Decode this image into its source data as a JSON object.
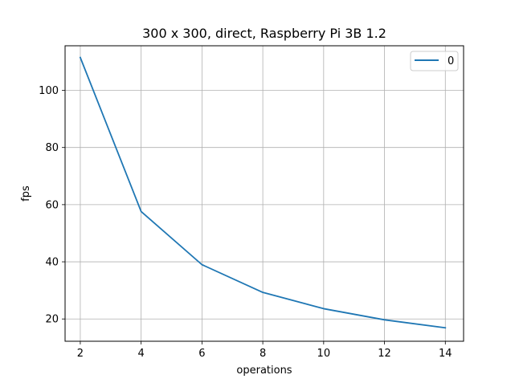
{
  "chart_data": {
    "type": "line",
    "title": "300 x 300, direct,  Raspberry Pi 3B 1.2",
    "xlabel": "operations",
    "ylabel": "fps",
    "xlim": [
      1.5,
      14.6
    ],
    "ylim": [
      12.2,
      115.6
    ],
    "xticks": [
      2,
      4,
      6,
      8,
      10,
      12,
      14
    ],
    "yticks": [
      20,
      40,
      60,
      80,
      100
    ],
    "grid": true,
    "legend_position": "top-right",
    "series": [
      {
        "name": "0",
        "color": "#1f77b4",
        "x": [
          2,
          4,
          6,
          8,
          10,
          12,
          14
        ],
        "y": [
          111.5,
          57.6,
          39.0,
          29.3,
          23.6,
          19.7,
          16.9
        ]
      }
    ]
  }
}
